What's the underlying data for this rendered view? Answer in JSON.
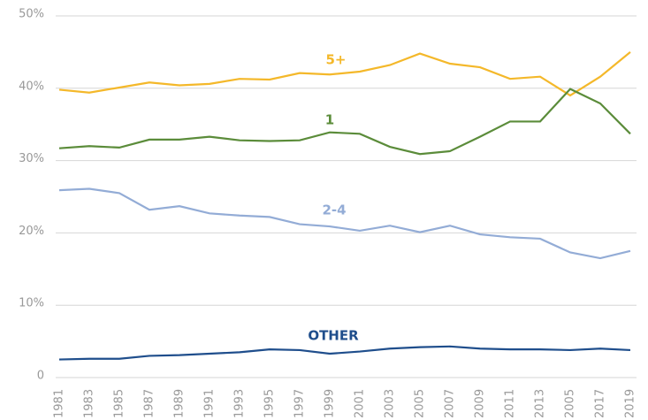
{
  "chart_data": {
    "type": "line",
    "categories": [
      "1981",
      "1983",
      "1985",
      "1987",
      "1989",
      "1991",
      "1993",
      "1995",
      "1997",
      "1999",
      "2001",
      "2003",
      "2005",
      "2007",
      "2009",
      "2011",
      "2013",
      "2005",
      "2017",
      "2019"
    ],
    "series": [
      {
        "name": "5+",
        "color": "#f4b82a",
        "values": [
          39.8,
          39.4,
          40.1,
          40.8,
          40.4,
          40.6,
          41.3,
          41.2,
          42.1,
          41.9,
          42.3,
          43.2,
          44.8,
          43.4,
          42.9,
          41.3,
          41.6,
          39.0,
          41.6,
          45.0
        ]
      },
      {
        "name": "1",
        "color": "#5b8c3a",
        "values": [
          31.7,
          32.0,
          31.8,
          32.9,
          32.9,
          33.3,
          32.8,
          32.7,
          32.8,
          33.9,
          33.7,
          31.9,
          30.9,
          31.3,
          33.3,
          35.4,
          35.4,
          39.9,
          37.9,
          33.7
        ]
      },
      {
        "name": "2-4",
        "color": "#93acd6",
        "values": [
          25.9,
          26.1,
          25.5,
          23.2,
          23.7,
          22.7,
          22.4,
          22.2,
          21.2,
          20.9,
          20.3,
          21.0,
          20.1,
          21.0,
          19.8,
          19.4,
          19.2,
          17.3,
          16.5,
          17.5
        ]
      },
      {
        "name": "OTHER",
        "color": "#1f4e8c",
        "values": [
          2.5,
          2.6,
          2.6,
          3.0,
          3.1,
          3.3,
          3.5,
          3.9,
          3.8,
          3.3,
          3.6,
          4.0,
          4.2,
          4.3,
          4.0,
          3.9,
          3.9,
          3.8,
          4.0,
          3.8
        ]
      }
    ],
    "ylim": [
      0,
      50
    ],
    "yticks": [
      0,
      {
        "value": 10,
        "label": "10%"
      },
      {
        "value": 20,
        "label": "20%"
      },
      {
        "value": 30,
        "label": "30%"
      },
      {
        "value": 40,
        "label": "40%"
      },
      {
        "value": 50,
        "label": "50%"
      }
    ],
    "grid": true
  }
}
